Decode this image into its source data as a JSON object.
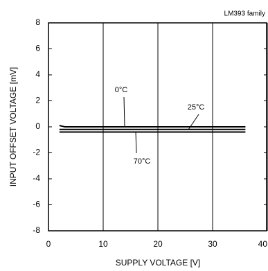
{
  "chart_data": {
    "type": "line",
    "note": "LM393 family",
    "x_label": "SUPPLY VOLTAGE [V]",
    "y_label": "INPUT OFFSET VOLTAGE [mV]",
    "xlim": [
      0,
      40
    ],
    "ylim": [
      -8,
      8
    ],
    "xticks": [
      0,
      10,
      20,
      30,
      40
    ],
    "yticks": [
      -8,
      -6,
      -4,
      -2,
      0,
      2,
      4,
      6,
      8
    ],
    "grid": "x",
    "series": [
      {
        "name": "0°C",
        "color": "#000000",
        "x": [
          2,
          2.5,
          3,
          36
        ],
        "values": [
          0.1,
          0.05,
          0,
          0
        ]
      },
      {
        "name": "25°C",
        "color": "#000000",
        "x": [
          2,
          36
        ],
        "values": [
          -0.2,
          -0.2
        ]
      },
      {
        "name": "70°C",
        "color": "#000000",
        "x": [
          2,
          36
        ],
        "values": [
          -0.4,
          -0.4
        ]
      }
    ]
  }
}
